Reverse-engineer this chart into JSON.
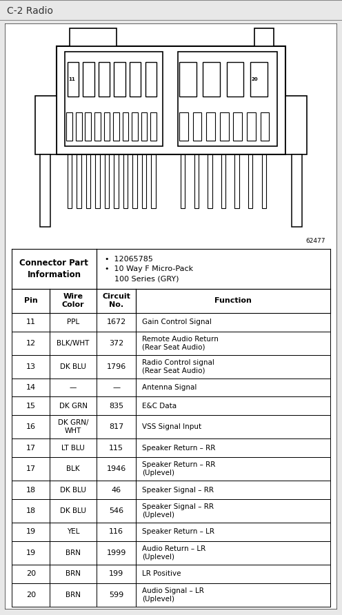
{
  "title": "C-2 Radio",
  "title_bg": "#dcdcdc",
  "page_bg": "#e8e8e8",
  "diagram_code": "62477",
  "connector_info_left": "Connector Part\nInformation",
  "connector_info_right": "•  12065785\n•  10 Way F Micro-Pack\n    100 Series (GRY)",
  "col_headers": [
    "Pin",
    "Wire\nColor",
    "Circuit\nNo.",
    "Function"
  ],
  "rows": [
    [
      "11",
      "PPL",
      "1672",
      "Gain Control Signal"
    ],
    [
      "12",
      "BLK/WHT",
      "372",
      "Remote Audio Return\n(Rear Seat Audio)"
    ],
    [
      "13",
      "DK BLU",
      "1796",
      "Radio Control signal\n(Rear Seat Audio)"
    ],
    [
      "14",
      "—",
      "—",
      "Antenna Signal"
    ],
    [
      "15",
      "DK GRN",
      "835",
      "E&C Data"
    ],
    [
      "16",
      "DK GRN/\nWHT",
      "817",
      "VSS Signal Input"
    ],
    [
      "17",
      "LT BLU",
      "115",
      "Speaker Return – RR"
    ],
    [
      "17",
      "BLK",
      "1946",
      "Speaker Return – RR\n(Uplevel)"
    ],
    [
      "18",
      "DK BLU",
      "46",
      "Speaker Signal – RR"
    ],
    [
      "18",
      "DK BLU",
      "546",
      "Speaker Signal – RR\n(Uplevel)"
    ],
    [
      "19",
      "YEL",
      "116",
      "Speaker Return – LR"
    ],
    [
      "19",
      "BRN",
      "1999",
      "Audio Return – LR\n(Uplevel)"
    ],
    [
      "20",
      "BRN",
      "199",
      "LR Positive"
    ],
    [
      "20",
      "BRN",
      "599",
      "Audio Signal – LR\n(Uplevel)"
    ]
  ]
}
